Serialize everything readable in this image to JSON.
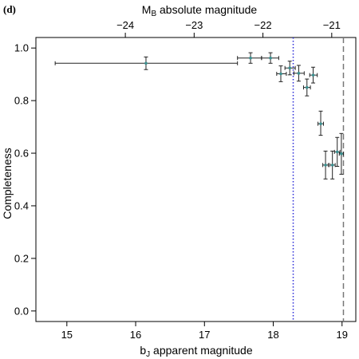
{
  "chart_data": {
    "type": "scatter",
    "panel_label": "(d)",
    "xlabel_main": "b",
    "xlabel_sub": "J",
    "xlabel_rest": " apparent magnitude",
    "ylabel": "Completeness",
    "top_label_main": "M",
    "top_label_sub": "B",
    "top_label_rest": " absolute magnitude",
    "xlim": [
      14.55,
      19.2
    ],
    "ylim": [
      -0.04,
      1.04
    ],
    "x_ticks": [
      15,
      16,
      17,
      18,
      19
    ],
    "x_tick_labels": [
      "15",
      "16",
      "17",
      "18",
      "19"
    ],
    "y_ticks": [
      0.0,
      0.2,
      0.4,
      0.6,
      0.8,
      1.0
    ],
    "y_tick_labels": [
      "0.0",
      "0.2",
      "0.4",
      "0.6",
      "0.8",
      "1.0"
    ],
    "top_ticks": [
      {
        "x": 15.85,
        "label": "−24"
      },
      {
        "x": 16.85,
        "label": "−23"
      },
      {
        "x": 17.85,
        "label": "−22"
      },
      {
        "x": 18.85,
        "label": "−21"
      }
    ],
    "points": [
      {
        "x": 16.15,
        "y": 0.942,
        "xmin": 14.83,
        "xmax": 17.48,
        "ymin": 0.918,
        "ymax": 0.966
      },
      {
        "x": 17.67,
        "y": 0.962,
        "xmin": 17.48,
        "xmax": 17.83,
        "ymin": 0.942,
        "ymax": 0.982
      },
      {
        "x": 17.96,
        "y": 0.962,
        "xmin": 17.83,
        "xmax": 18.08,
        "ymin": 0.942,
        "ymax": 0.982
      },
      {
        "x": 18.11,
        "y": 0.902,
        "xmin": 18.05,
        "xmax": 18.19,
        "ymin": 0.872,
        "ymax": 0.932
      },
      {
        "x": 18.24,
        "y": 0.924,
        "xmin": 18.17,
        "xmax": 18.32,
        "ymin": 0.898,
        "ymax": 0.95
      },
      {
        "x": 18.37,
        "y": 0.904,
        "xmin": 18.3,
        "xmax": 18.45,
        "ymin": 0.874,
        "ymax": 0.934
      },
      {
        "x": 18.49,
        "y": 0.85,
        "xmin": 18.44,
        "xmax": 18.54,
        "ymin": 0.818,
        "ymax": 0.882
      },
      {
        "x": 18.58,
        "y": 0.897,
        "xmin": 18.53,
        "xmax": 18.64,
        "ymin": 0.867,
        "ymax": 0.927
      },
      {
        "x": 18.69,
        "y": 0.712,
        "xmin": 18.65,
        "xmax": 18.73,
        "ymin": 0.668,
        "ymax": 0.76
      },
      {
        "x": 18.76,
        "y": 0.555,
        "xmin": 18.72,
        "xmax": 18.8,
        "ymin": 0.502,
        "ymax": 0.608
      },
      {
        "x": 18.86,
        "y": 0.555,
        "xmin": 18.82,
        "xmax": 18.9,
        "ymin": 0.502,
        "ymax": 0.608
      },
      {
        "x": 18.93,
        "y": 0.605,
        "xmin": 18.89,
        "xmax": 18.97,
        "ymin": 0.55,
        "ymax": 0.66
      },
      {
        "x": 18.99,
        "y": 0.598,
        "xmin": 18.96,
        "xmax": 19.02,
        "ymin": 0.52,
        "ymax": 0.675
      }
    ],
    "reference_lines": [
      {
        "x": 18.29,
        "style": "dotted",
        "color": "#2a2ad8"
      },
      {
        "x": 19.02,
        "style": "dashed",
        "color": "#777777"
      }
    ],
    "point_color": "#3a8f8f",
    "bar_color": "#222222",
    "grid": false,
    "legend": "none"
  }
}
